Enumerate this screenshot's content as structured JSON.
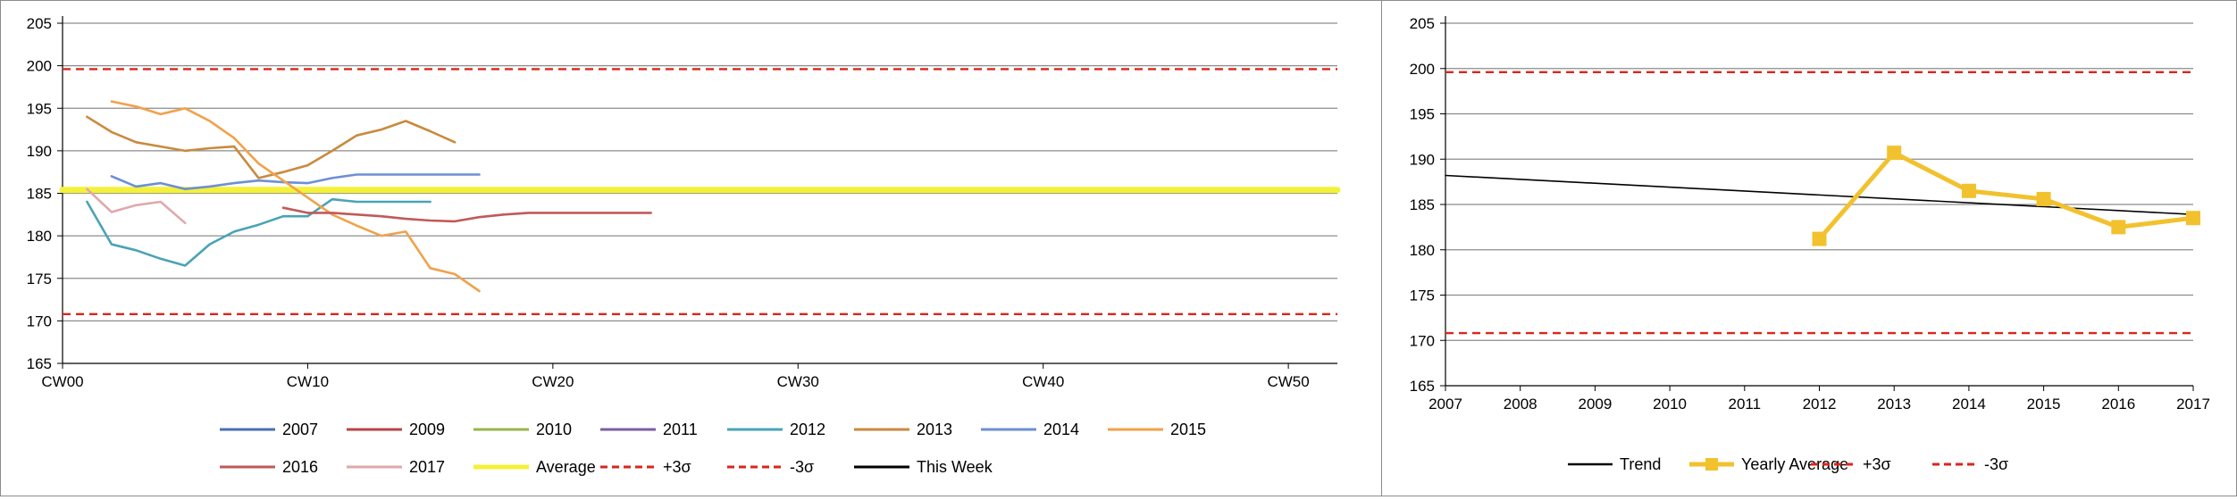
{
  "chart_data": [
    {
      "type": "line",
      "title": "",
      "xlabel": "",
      "ylabel": "",
      "x_range": [
        0,
        52
      ],
      "ylim": [
        165,
        205
      ],
      "x_ticks": [
        {
          "label": "CW00",
          "value": 0
        },
        {
          "label": "CW10",
          "value": 10
        },
        {
          "label": "CW20",
          "value": 20
        },
        {
          "label": "CW30",
          "value": 30
        },
        {
          "label": "CW40",
          "value": 40
        },
        {
          "label": "CW50",
          "value": 50
        }
      ],
      "y_ticks": [
        165,
        170,
        175,
        180,
        185,
        190,
        195,
        200,
        205
      ],
      "grid": "horizontal",
      "legend_position": "bottom",
      "series": [
        {
          "name": "2007",
          "color": "#4a6fb5",
          "style": "solid",
          "points": []
        },
        {
          "name": "2009",
          "color": "#b5474a",
          "style": "solid",
          "points": []
        },
        {
          "name": "2010",
          "color": "#98b44a",
          "style": "solid",
          "points": []
        },
        {
          "name": "2011",
          "color": "#7a5fa0",
          "style": "solid",
          "points": []
        },
        {
          "name": "2012",
          "color": "#4aa3b5",
          "style": "solid",
          "points": [
            [
              1,
              184
            ],
            [
              2,
              179
            ],
            [
              3,
              178.3
            ],
            [
              4,
              177.3
            ],
            [
              5,
              176.5
            ],
            [
              6,
              179
            ],
            [
              7,
              180.5
            ],
            [
              8,
              181.3
            ],
            [
              9,
              182.3
            ],
            [
              10,
              182.3
            ],
            [
              11,
              184.3
            ],
            [
              12,
              184
            ],
            [
              13,
              184
            ],
            [
              14,
              184
            ],
            [
              15,
              184
            ]
          ]
        },
        {
          "name": "2013",
          "color": "#c98a3e",
          "style": "solid",
          "points": [
            [
              1,
              194
            ],
            [
              2,
              192.2
            ],
            [
              3,
              191
            ],
            [
              4,
              190.5
            ],
            [
              5,
              190
            ],
            [
              6,
              190.3
            ],
            [
              7,
              190.5
            ],
            [
              8,
              186.8
            ],
            [
              9,
              187.5
            ],
            [
              10,
              188.3
            ],
            [
              11,
              190
            ],
            [
              12,
              191.8
            ],
            [
              13,
              192.5
            ],
            [
              14,
              193.5
            ],
            [
              15,
              192.3
            ],
            [
              16,
              191
            ]
          ]
        },
        {
          "name": "2014",
          "color": "#6d8fd4",
          "style": "solid",
          "points": [
            [
              2,
              187
            ],
            [
              3,
              185.8
            ],
            [
              4,
              186.2
            ],
            [
              5,
              185.5
            ],
            [
              6,
              185.8
            ],
            [
              7,
              186.2
            ],
            [
              8,
              186.5
            ],
            [
              9,
              186.3
            ],
            [
              10,
              186.2
            ],
            [
              11,
              186.8
            ],
            [
              12,
              187.2
            ],
            [
              13,
              187.2
            ],
            [
              14,
              187.2
            ],
            [
              15,
              187.2
            ],
            [
              16,
              187.2
            ],
            [
              17,
              187.2
            ]
          ]
        },
        {
          "name": "2015",
          "color": "#f0a24a",
          "style": "solid",
          "points": [
            [
              2,
              195.8
            ],
            [
              3,
              195.2
            ],
            [
              4,
              194.3
            ],
            [
              5,
              195
            ],
            [
              6,
              193.5
            ],
            [
              7,
              191.5
            ],
            [
              8,
              188.5
            ],
            [
              9,
              186.5
            ],
            [
              10,
              184.5
            ],
            [
              11,
              182.5
            ],
            [
              12,
              181.2
            ],
            [
              13,
              180
            ],
            [
              14,
              180.5
            ],
            [
              15,
              176.2
            ],
            [
              16,
              175.5
            ],
            [
              17,
              173.5
            ]
          ]
        },
        {
          "name": "2016",
          "color": "#c05a5a",
          "style": "solid",
          "points": [
            [
              9,
              183.3
            ],
            [
              10,
              182.7
            ],
            [
              11,
              182.7
            ],
            [
              12,
              182.5
            ],
            [
              13,
              182.3
            ],
            [
              14,
              182
            ],
            [
              15,
              181.8
            ],
            [
              16,
              181.7
            ],
            [
              17,
              182.2
            ],
            [
              18,
              182.5
            ],
            [
              19,
              182.7
            ],
            [
              20,
              182.7
            ],
            [
              21,
              182.7
            ],
            [
              22,
              182.7
            ],
            [
              23,
              182.7
            ],
            [
              24,
              182.7
            ]
          ]
        },
        {
          "name": "2017",
          "color": "#e0a8ae",
          "style": "solid",
          "points": [
            [
              1,
              185.5
            ],
            [
              2,
              182.8
            ],
            [
              3,
              183.6
            ],
            [
              4,
              184
            ],
            [
              5,
              181.5
            ]
          ]
        },
        {
          "name": "Average",
          "color": "#f4f13a",
          "style": "solid",
          "points": [
            [
              0,
              185.4
            ],
            [
              52,
              185.4
            ]
          ]
        },
        {
          "name": "+3σ",
          "color": "#d9261c",
          "style": "dashed",
          "points": [
            [
              0,
              199.6
            ],
            [
              52,
              199.6
            ]
          ]
        },
        {
          "name": "-3σ",
          "color": "#d9261c",
          "style": "dashed",
          "points": [
            [
              0,
              170.8
            ],
            [
              52,
              170.8
            ]
          ]
        },
        {
          "name": "This Week",
          "color": "#000000",
          "style": "solid",
          "points": []
        }
      ]
    },
    {
      "type": "line",
      "title": "",
      "xlabel": "",
      "ylabel": "",
      "x_range": [
        2007,
        2017
      ],
      "ylim": [
        165,
        205
      ],
      "x_ticks": [
        {
          "label": "2007",
          "value": 2007
        },
        {
          "label": "2008",
          "value": 2008
        },
        {
          "label": "2009",
          "value": 2009
        },
        {
          "label": "2010",
          "value": 2010
        },
        {
          "label": "2011",
          "value": 2011
        },
        {
          "label": "2012",
          "value": 2012
        },
        {
          "label": "2013",
          "value": 2013
        },
        {
          "label": "2014",
          "value": 2014
        },
        {
          "label": "2015",
          "value": 2015
        },
        {
          "label": "2016",
          "value": 2016
        },
        {
          "label": "2017",
          "value": 2017
        }
      ],
      "y_ticks": [
        165,
        170,
        175,
        180,
        185,
        190,
        195,
        200,
        205
      ],
      "grid": "horizontal",
      "legend_position": "bottom",
      "series": [
        {
          "name": "Trend",
          "color": "#000000",
          "style": "solid",
          "points": [
            [
              2007,
              188.2
            ],
            [
              2017,
              183.9
            ]
          ]
        },
        {
          "name": "Yearly Average",
          "color": "#f2c12e",
          "style": "solid",
          "marker": "square",
          "points": [
            [
              2012,
              181.2
            ],
            [
              2013,
              190.7
            ],
            [
              2014,
              186.5
            ],
            [
              2015,
              185.6
            ],
            [
              2016,
              182.5
            ],
            [
              2017,
              183.5
            ]
          ]
        },
        {
          "name": "+3σ",
          "color": "#d9261c",
          "style": "dashed",
          "points": [
            [
              2007,
              199.6
            ],
            [
              2017,
              199.6
            ]
          ]
        },
        {
          "name": "-3σ",
          "color": "#d9261c",
          "style": "dashed",
          "points": [
            [
              2007,
              170.8
            ],
            [
              2017,
              170.8
            ]
          ]
        }
      ]
    }
  ]
}
